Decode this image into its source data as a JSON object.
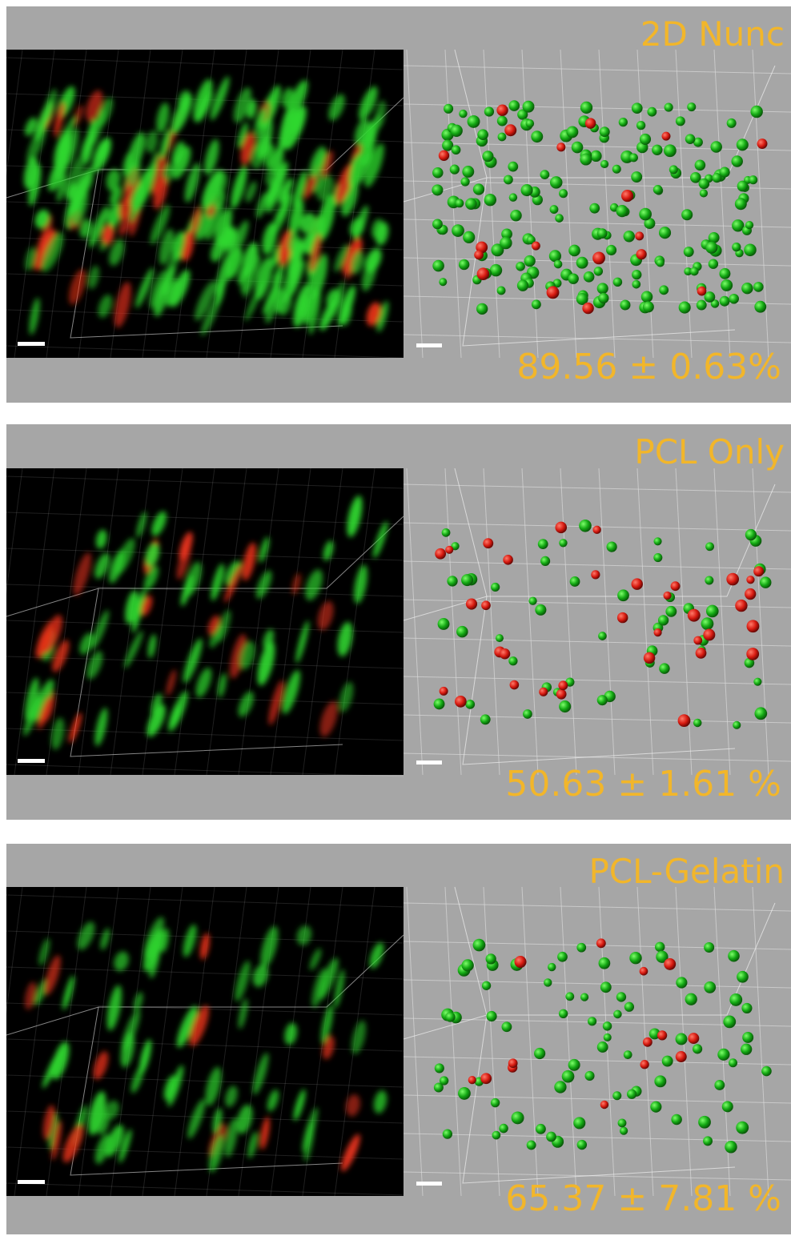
{
  "panels": [
    {
      "label": "2D Nunc",
      "percentage": "89.56 ± 0.63%"
    },
    {
      "label": "PCL Only",
      "percentage": "50.63 ± 1.61 %"
    },
    {
      "label": "PCL-Gelatin",
      "percentage": "65.37 ± 7.81 %"
    }
  ]
}
